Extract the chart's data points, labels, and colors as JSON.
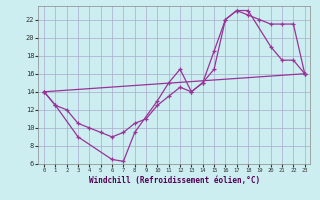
{
  "xlabel": "Windchill (Refroidissement éolien,°C)",
  "background_color": "#cceef0",
  "grid_color": "#aaaacc",
  "line_color": "#993399",
  "xlim": [
    -0.5,
    23.5
  ],
  "ylim": [
    6,
    23.5
  ],
  "xticks": [
    0,
    1,
    2,
    3,
    4,
    5,
    6,
    7,
    8,
    9,
    10,
    11,
    12,
    13,
    14,
    15,
    16,
    17,
    18,
    19,
    20,
    21,
    22,
    23
  ],
  "yticks": [
    6,
    8,
    10,
    12,
    14,
    16,
    18,
    20,
    22
  ],
  "line1_x": [
    0,
    1,
    2,
    3,
    4,
    5,
    6,
    7,
    8,
    9,
    10,
    11,
    12,
    13,
    14,
    15,
    16,
    17,
    18,
    19,
    20,
    21,
    22,
    23
  ],
  "line1_y": [
    14,
    12.5,
    12,
    10.5,
    10,
    9.5,
    9,
    9.5,
    10.5,
    11,
    12.5,
    13.5,
    14.5,
    14,
    15,
    16.5,
    22,
    23,
    22.5,
    22,
    21.5,
    21.5,
    21.5,
    16
  ],
  "line2_x": [
    0,
    1,
    3,
    6,
    7,
    8,
    10,
    11,
    12,
    13,
    14,
    15,
    16,
    17,
    18,
    20,
    21,
    22,
    23
  ],
  "line2_y": [
    14,
    12.5,
    9,
    6.5,
    6.3,
    9.5,
    13,
    15,
    16.5,
    14,
    15,
    18.5,
    22,
    23,
    23,
    19,
    17.5,
    17.5,
    16
  ],
  "line3_x": [
    0,
    23
  ],
  "line3_y": [
    14,
    16
  ]
}
